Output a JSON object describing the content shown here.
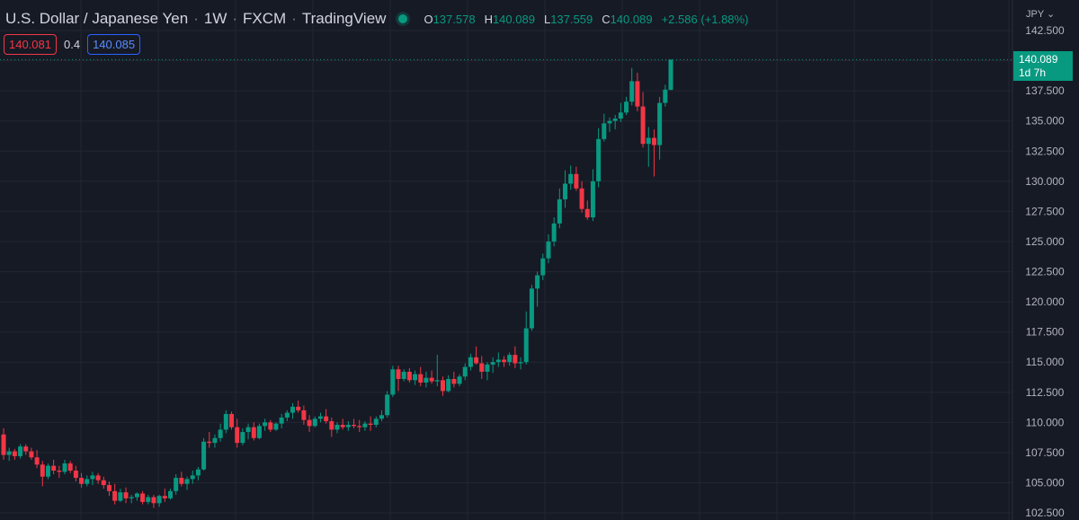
{
  "header": {
    "symbol_name": "U.S. Dollar / Japanese Yen",
    "interval": "1W",
    "broker": "FXCM",
    "platform": "TradingView",
    "ohlc": {
      "o_label": "O",
      "o_value": "137.578",
      "h_label": "H",
      "h_value": "140.089",
      "l_label": "L",
      "l_value": "137.559",
      "c_label": "C",
      "c_value": "140.089",
      "change": "+2.586 (+1.88%)"
    }
  },
  "quotes": {
    "sell": "140.081",
    "spread": "0.4",
    "buy": "140.085"
  },
  "axis": {
    "currency": "JPY"
  },
  "last_price": {
    "value": "140.089",
    "countdown": "1d 7h"
  },
  "colors": {
    "background": "#161a25",
    "up": "#089981",
    "down": "#f23645",
    "grid": "#232632",
    "buy_border": "#2962ff"
  },
  "chart_data": {
    "type": "candlestick",
    "title": "U.S. Dollar / Japanese Yen",
    "ylim": [
      102.5,
      142.5
    ],
    "y_ticks": [
      "142.500",
      "140.000",
      "137.500",
      "135.000",
      "132.500",
      "130.000",
      "127.500",
      "125.000",
      "122.500",
      "120.000",
      "117.500",
      "115.000",
      "112.500",
      "110.000",
      "107.500",
      "105.000",
      "102.500"
    ],
    "grid": true,
    "last_price_line": 140.089,
    "candles": [
      [
        109.0,
        109.5,
        106.9,
        107.3
      ],
      [
        107.3,
        107.9,
        106.8,
        107.6
      ],
      [
        107.6,
        107.8,
        106.9,
        107.2
      ],
      [
        107.2,
        108.2,
        107.0,
        108.0
      ],
      [
        108.0,
        108.2,
        107.3,
        107.6
      ],
      [
        107.6,
        107.9,
        106.9,
        107.1
      ],
      [
        107.1,
        107.7,
        106.2,
        106.5
      ],
      [
        106.5,
        106.8,
        104.7,
        105.5
      ],
      [
        105.5,
        106.6,
        105.3,
        106.4
      ],
      [
        106.4,
        106.9,
        105.7,
        106.0
      ],
      [
        106.0,
        106.4,
        105.4,
        105.9
      ],
      [
        105.9,
        106.9,
        105.7,
        106.6
      ],
      [
        106.6,
        106.8,
        105.8,
        106.0
      ],
      [
        106.0,
        106.4,
        105.1,
        105.4
      ],
      [
        105.4,
        105.8,
        104.6,
        104.9
      ],
      [
        104.9,
        105.6,
        104.7,
        105.3
      ],
      [
        105.3,
        105.9,
        104.8,
        105.6
      ],
      [
        105.6,
        105.8,
        104.9,
        105.2
      ],
      [
        105.2,
        105.5,
        104.5,
        104.8
      ],
      [
        104.8,
        105.1,
        103.9,
        104.3
      ],
      [
        104.3,
        104.9,
        103.2,
        103.5
      ],
      [
        103.5,
        104.5,
        103.4,
        104.2
      ],
      [
        104.2,
        104.6,
        103.3,
        103.7
      ],
      [
        103.7,
        104.0,
        103.3,
        103.8
      ],
      [
        103.8,
        104.2,
        103.5,
        104.1
      ],
      [
        104.1,
        104.3,
        103.2,
        103.4
      ],
      [
        103.4,
        104.0,
        103.2,
        103.8
      ],
      [
        103.8,
        104.0,
        102.9,
        103.3
      ],
      [
        103.3,
        104.0,
        103.0,
        103.9
      ],
      [
        103.9,
        104.5,
        103.4,
        103.7
      ],
      [
        103.7,
        104.5,
        103.6,
        104.3
      ],
      [
        104.3,
        105.7,
        104.0,
        105.4
      ],
      [
        105.4,
        105.9,
        104.7,
        104.9
      ],
      [
        104.9,
        105.5,
        104.4,
        105.3
      ],
      [
        105.3,
        106.0,
        104.9,
        105.6
      ],
      [
        105.6,
        106.3,
        105.2,
        106.1
      ],
      [
        106.1,
        108.7,
        106.0,
        108.4
      ],
      [
        108.4,
        109.2,
        107.9,
        108.3
      ],
      [
        108.3,
        109.0,
        107.9,
        108.7
      ],
      [
        108.7,
        109.9,
        108.4,
        109.4
      ],
      [
        109.4,
        111.0,
        109.1,
        110.7
      ],
      [
        110.7,
        110.9,
        109.4,
        109.6
      ],
      [
        109.6,
        110.3,
        107.9,
        108.3
      ],
      [
        108.3,
        109.5,
        108.1,
        109.2
      ],
      [
        109.2,
        109.9,
        108.6,
        109.6
      ],
      [
        109.6,
        110.0,
        108.5,
        108.7
      ],
      [
        108.7,
        109.9,
        108.6,
        109.7
      ],
      [
        109.7,
        110.3,
        109.3,
        110.0
      ],
      [
        110.0,
        110.2,
        109.2,
        109.4
      ],
      [
        109.4,
        110.0,
        109.3,
        109.9
      ],
      [
        109.9,
        110.7,
        109.5,
        110.4
      ],
      [
        110.4,
        111.0,
        110.1,
        110.8
      ],
      [
        110.8,
        111.6,
        110.3,
        111.3
      ],
      [
        111.3,
        111.8,
        110.8,
        111.0
      ],
      [
        111.0,
        111.4,
        109.8,
        110.2
      ],
      [
        110.2,
        110.6,
        109.2,
        109.7
      ],
      [
        109.7,
        110.5,
        109.6,
        110.3
      ],
      [
        110.3,
        110.8,
        110.0,
        110.5
      ],
      [
        110.5,
        111.1,
        109.9,
        110.1
      ],
      [
        110.1,
        110.4,
        108.8,
        109.4
      ],
      [
        109.4,
        110.0,
        109.1,
        109.8
      ],
      [
        109.8,
        110.3,
        109.4,
        109.6
      ],
      [
        109.6,
        110.1,
        109.3,
        109.8
      ],
      [
        109.8,
        110.3,
        109.5,
        109.7
      ],
      [
        109.7,
        110.2,
        109.2,
        109.6
      ],
      [
        109.6,
        110.1,
        109.3,
        109.9
      ],
      [
        109.9,
        110.5,
        109.3,
        109.8
      ],
      [
        109.8,
        110.5,
        109.6,
        110.3
      ],
      [
        110.3,
        111.0,
        110.1,
        110.6
      ],
      [
        110.6,
        112.6,
        110.4,
        112.3
      ],
      [
        112.3,
        114.7,
        112.1,
        114.4
      ],
      [
        114.4,
        114.7,
        112.6,
        113.6
      ],
      [
        113.6,
        114.4,
        113.4,
        114.2
      ],
      [
        114.2,
        114.5,
        113.3,
        113.5
      ],
      [
        113.5,
        114.3,
        113.1,
        114.0
      ],
      [
        114.0,
        114.6,
        113.0,
        113.3
      ],
      [
        113.3,
        114.2,
        112.9,
        113.7
      ],
      [
        113.7,
        114.3,
        113.2,
        113.4
      ],
      [
        113.4,
        115.6,
        113.0,
        113.5
      ],
      [
        113.5,
        113.8,
        112.2,
        112.6
      ],
      [
        112.6,
        113.9,
        112.5,
        113.6
      ],
      [
        113.6,
        114.2,
        112.9,
        113.2
      ],
      [
        113.2,
        114.0,
        113.0,
        113.8
      ],
      [
        113.8,
        114.9,
        113.5,
        114.6
      ],
      [
        114.6,
        115.7,
        114.3,
        115.4
      ],
      [
        115.4,
        116.3,
        114.8,
        114.9
      ],
      [
        114.9,
        115.5,
        113.6,
        114.2
      ],
      [
        114.2,
        115.0,
        113.5,
        114.8
      ],
      [
        114.8,
        115.4,
        114.1,
        115.0
      ],
      [
        115.0,
        115.8,
        114.6,
        115.2
      ],
      [
        115.2,
        115.5,
        114.6,
        115.0
      ],
      [
        115.0,
        115.8,
        114.7,
        115.6
      ],
      [
        115.6,
        116.3,
        114.5,
        114.9
      ],
      [
        114.9,
        115.4,
        114.4,
        115.0
      ],
      [
        115.0,
        119.2,
        114.8,
        117.8
      ],
      [
        117.8,
        121.4,
        117.6,
        121.1
      ],
      [
        121.1,
        122.5,
        119.6,
        122.2
      ],
      [
        122.2,
        124.0,
        121.8,
        123.6
      ],
      [
        123.6,
        125.6,
        123.2,
        125.0
      ],
      [
        125.0,
        127.0,
        124.6,
        126.5
      ],
      [
        126.5,
        129.4,
        126.1,
        128.5
      ],
      [
        128.5,
        130.9,
        127.8,
        129.8
      ],
      [
        129.8,
        131.3,
        129.3,
        130.6
      ],
      [
        130.6,
        131.2,
        129.2,
        129.4
      ],
      [
        129.4,
        130.0,
        127.4,
        127.7
      ],
      [
        127.7,
        128.4,
        126.8,
        127.0
      ],
      [
        127.0,
        131.0,
        126.7,
        130.0
      ],
      [
        130.0,
        134.4,
        129.5,
        133.5
      ],
      [
        133.5,
        135.6,
        133.3,
        134.8
      ],
      [
        134.8,
        135.3,
        134.1,
        135.0
      ],
      [
        135.0,
        135.5,
        134.3,
        135.2
      ],
      [
        135.2,
        136.5,
        134.9,
        135.7
      ],
      [
        135.7,
        137.0,
        135.5,
        136.6
      ],
      [
        136.6,
        139.4,
        136.3,
        138.3
      ],
      [
        138.3,
        139.0,
        135.8,
        136.2
      ],
      [
        136.2,
        137.4,
        132.8,
        133.1
      ],
      [
        133.1,
        134.5,
        131.2,
        133.6
      ],
      [
        133.6,
        134.3,
        130.4,
        133.0
      ],
      [
        133.0,
        137.0,
        131.8,
        136.5
      ],
      [
        136.5,
        138.0,
        136.2,
        137.6
      ],
      [
        137.58,
        140.09,
        137.56,
        140.09
      ]
    ]
  }
}
